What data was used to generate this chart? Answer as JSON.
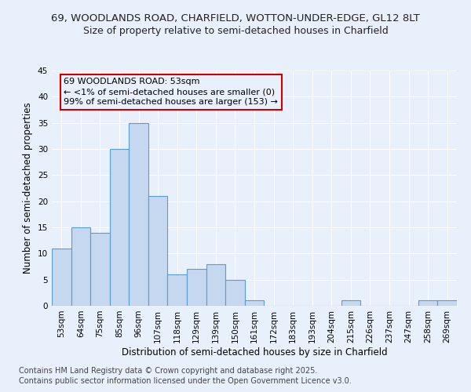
{
  "title_line1": "69, WOODLANDS ROAD, CHARFIELD, WOTTON-UNDER-EDGE, GL12 8LT",
  "title_line2": "Size of property relative to semi-detached houses in Charfield",
  "xlabel": "Distribution of semi-detached houses by size in Charfield",
  "ylabel": "Number of semi-detached properties",
  "categories": [
    "53sqm",
    "64sqm",
    "75sqm",
    "85sqm",
    "96sqm",
    "107sqm",
    "118sqm",
    "129sqm",
    "139sqm",
    "150sqm",
    "161sqm",
    "172sqm",
    "183sqm",
    "193sqm",
    "204sqm",
    "215sqm",
    "226sqm",
    "237sqm",
    "247sqm",
    "258sqm",
    "269sqm"
  ],
  "values": [
    11,
    15,
    14,
    30,
    35,
    21,
    6,
    7,
    8,
    5,
    1,
    0,
    0,
    0,
    0,
    1,
    0,
    0,
    0,
    1,
    1
  ],
  "bar_color": "#c5d8f0",
  "bar_edge_color": "#5b9bd5",
  "annotation_title": "69 WOODLANDS ROAD: 53sqm",
  "annotation_line1": "← <1% of semi-detached houses are smaller (0)",
  "annotation_line2": "99% of semi-detached houses are larger (153) →",
  "annotation_box_color": "#cc0000",
  "ylim": [
    0,
    45
  ],
  "yticks": [
    0,
    5,
    10,
    15,
    20,
    25,
    30,
    35,
    40,
    45
  ],
  "footer_line1": "Contains HM Land Registry data © Crown copyright and database right 2025.",
  "footer_line2": "Contains public sector information licensed under the Open Government Licence v3.0.",
  "bg_color": "#e8f0fb",
  "plot_bg_color": "#e8f0fb",
  "grid_color": "#ffffff",
  "title_fontsize": 9.5,
  "subtitle_fontsize": 9,
  "axis_label_fontsize": 8.5,
  "tick_fontsize": 7.5,
  "annotation_fontsize": 8,
  "footer_fontsize": 7
}
